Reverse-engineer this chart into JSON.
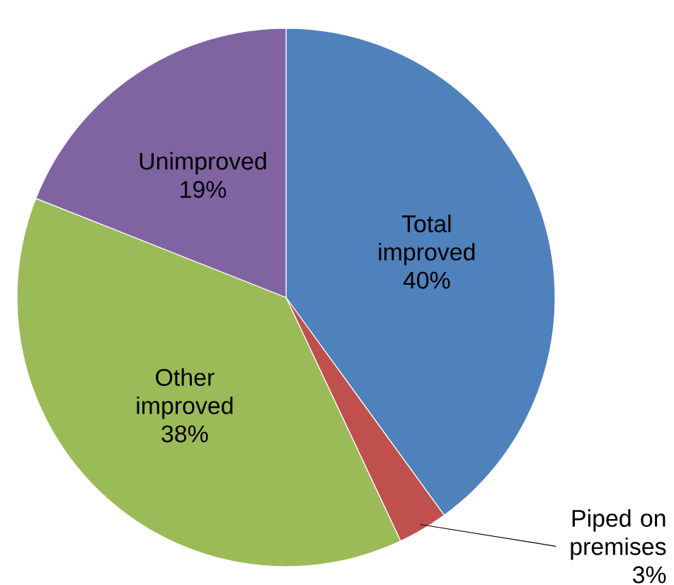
{
  "chart_data": {
    "type": "pie",
    "categories": [
      "Total improved",
      "Piped on premises",
      "Other improved",
      "Unimproved"
    ],
    "values": [
      40,
      3,
      38,
      19
    ],
    "value_labels": [
      "40%",
      "3%",
      "38%",
      "19%"
    ],
    "colors": [
      "#4f81bd",
      "#c0504d",
      "#9bbb59",
      "#8064a2"
    ]
  }
}
